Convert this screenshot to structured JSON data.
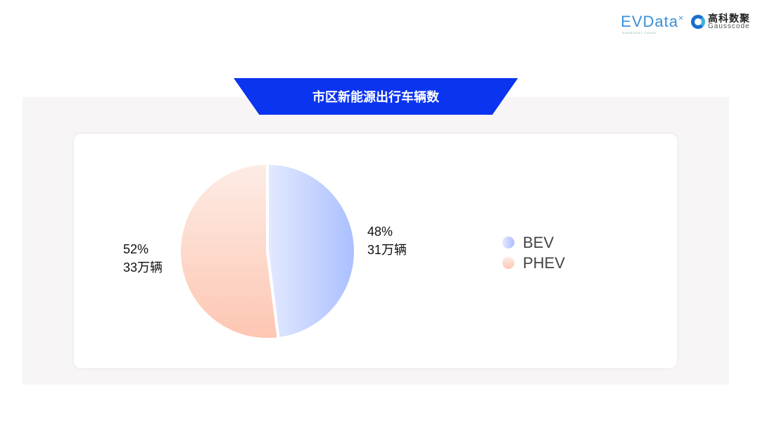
{
  "logos": {
    "evdata": "EVData",
    "evdata_sub": "SHANGHAI CHINA",
    "gauss_cn": "高科数聚",
    "gauss_en": "Gausscode"
  },
  "chart_data": {
    "type": "pie",
    "title": "市区新能源出行车辆数",
    "categories": [
      "BEV",
      "PHEV"
    ],
    "values": [
      31,
      33
    ],
    "unit": "万辆",
    "percentages": [
      "48%",
      "52%"
    ],
    "data_labels": [
      {
        "pct": "48%",
        "value": "31万辆"
      },
      {
        "pct": "52%",
        "value": "33万辆"
      }
    ],
    "colors": {
      "BEV": [
        "#e3e9ff",
        "#aabfff"
      ],
      "PHEV": [
        "#fdece6",
        "#fdc6b2"
      ]
    },
    "legend_position": "right"
  }
}
